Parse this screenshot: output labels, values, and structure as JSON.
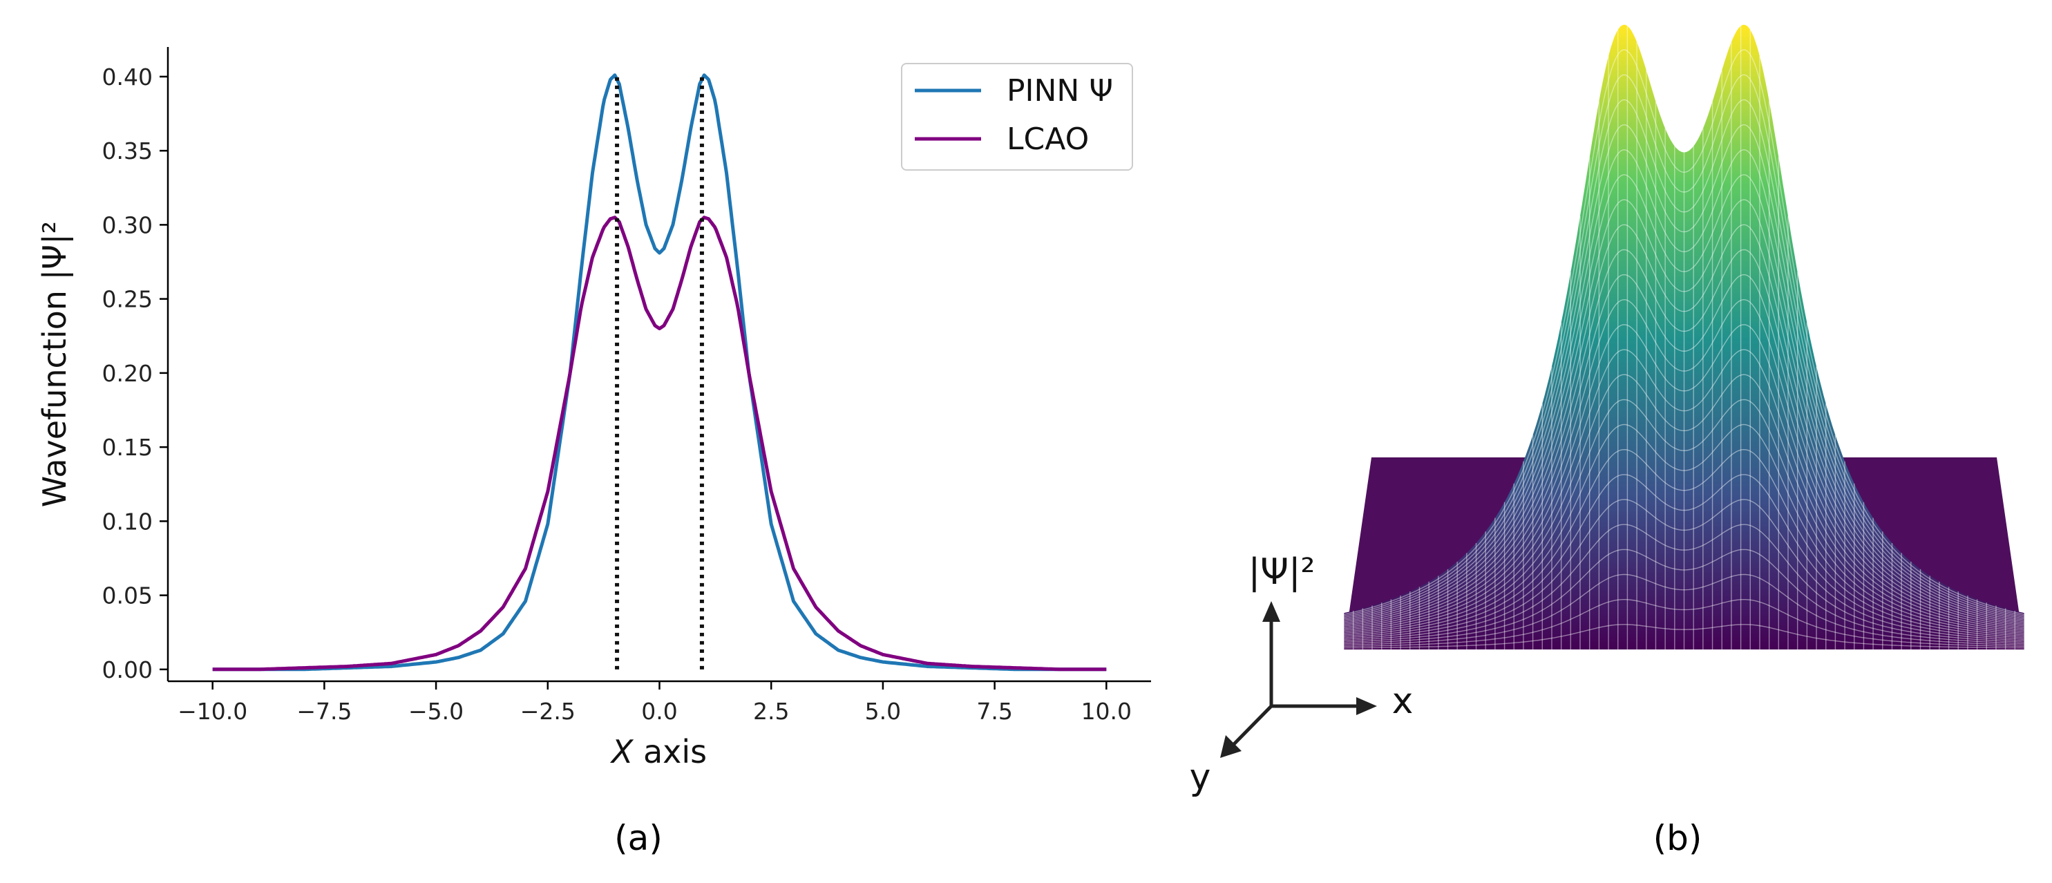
{
  "chart_data": [
    {
      "type": "line",
      "panel_label": "(a)",
      "xlabel_var": "X",
      "xlabel_rest": " axis",
      "ylabel": "Wavefunction |Ψ|²",
      "xlim": [
        -11,
        11
      ],
      "ylim": [
        -0.008,
        0.42
      ],
      "x_ticks": [
        -10.0,
        -7.5,
        -5.0,
        -2.5,
        0.0,
        2.5,
        5.0,
        7.5,
        10.0
      ],
      "x_tick_labels": [
        "−10.0",
        "−7.5",
        "−5.0",
        "−2.5",
        "0.0",
        "2.5",
        "5.0",
        "7.5",
        "10.0"
      ],
      "y_ticks": [
        0.0,
        0.05,
        0.1,
        0.15,
        0.2,
        0.25,
        0.3,
        0.35,
        0.4
      ],
      "y_tick_labels": [
        "0.00",
        "0.05",
        "0.10",
        "0.15",
        "0.20",
        "0.25",
        "0.30",
        "0.35",
        "0.40"
      ],
      "grid": false,
      "legend_position": "top-right",
      "series": [
        {
          "name": "PINN Ψ",
          "color": "#1f77b4",
          "x": [
            -10,
            -9,
            -8,
            -7,
            -6,
            -5,
            -4.5,
            -4,
            -3.5,
            -3,
            -2.5,
            -2,
            -1.75,
            -1.5,
            -1.25,
            -1.1,
            -1,
            -0.9,
            -0.7,
            -0.5,
            -0.3,
            -0.1,
            0,
            0.1,
            0.3,
            0.5,
            0.7,
            0.9,
            1,
            1.1,
            1.25,
            1.5,
            1.75,
            2,
            2.5,
            3,
            3.5,
            4,
            4.5,
            5,
            6,
            7,
            8,
            9,
            10
          ],
          "y": [
            0.0,
            0.0,
            0.0,
            0.001,
            0.002,
            0.005,
            0.008,
            0.013,
            0.024,
            0.046,
            0.098,
            0.2,
            0.27,
            0.335,
            0.383,
            0.398,
            0.401,
            0.395,
            0.365,
            0.33,
            0.3,
            0.284,
            0.281,
            0.284,
            0.3,
            0.33,
            0.365,
            0.395,
            0.401,
            0.398,
            0.383,
            0.335,
            0.27,
            0.2,
            0.098,
            0.046,
            0.024,
            0.013,
            0.008,
            0.005,
            0.002,
            0.001,
            0.0,
            0.0,
            0.0
          ]
        },
        {
          "name": "LCAO",
          "color": "#800080",
          "x": [
            -10,
            -9,
            -8,
            -7,
            -6,
            -5,
            -4.5,
            -4,
            -3.5,
            -3,
            -2.5,
            -2,
            -1.75,
            -1.5,
            -1.25,
            -1.1,
            -1,
            -0.9,
            -0.7,
            -0.5,
            -0.3,
            -0.1,
            0,
            0.1,
            0.3,
            0.5,
            0.7,
            0.9,
            1,
            1.1,
            1.25,
            1.5,
            1.75,
            2,
            2.5,
            3,
            3.5,
            4,
            4.5,
            5,
            6,
            7,
            8,
            9,
            10
          ],
          "y": [
            0.0,
            0.0,
            0.001,
            0.002,
            0.004,
            0.01,
            0.016,
            0.026,
            0.042,
            0.068,
            0.12,
            0.2,
            0.245,
            0.278,
            0.298,
            0.304,
            0.305,
            0.302,
            0.285,
            0.263,
            0.243,
            0.232,
            0.23,
            0.232,
            0.243,
            0.263,
            0.285,
            0.302,
            0.305,
            0.304,
            0.298,
            0.278,
            0.245,
            0.2,
            0.12,
            0.068,
            0.042,
            0.026,
            0.016,
            0.01,
            0.004,
            0.002,
            0.001,
            0.0,
            0.0
          ]
        }
      ],
      "vlines": [
        {
          "x": -0.95,
          "y_top": 0.401,
          "style": "dotted",
          "color": "#111111"
        },
        {
          "x": 0.95,
          "y_top": 0.401,
          "style": "dotted",
          "color": "#111111"
        }
      ]
    },
    {
      "type": "surface",
      "panel_label": "(b)",
      "colormap": "viridis",
      "colormap_stops": [
        "#440154",
        "#3b528b",
        "#21918c",
        "#5ec962",
        "#fde725"
      ],
      "axis_labels": {
        "x": "x",
        "y": "y",
        "z": "|Ψ|²"
      },
      "peaks_x": [
        -0.95,
        0.95
      ]
    }
  ]
}
